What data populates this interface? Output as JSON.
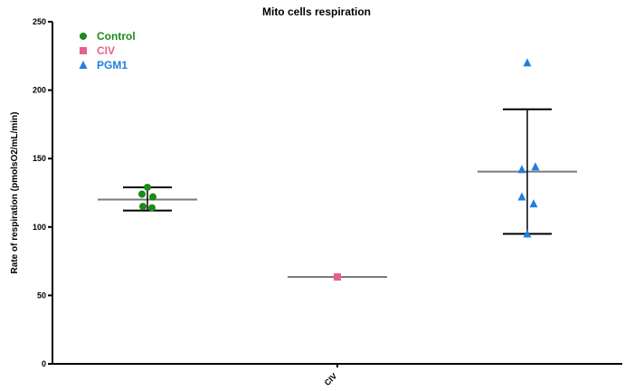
{
  "chart_data": {
    "type": "scatter",
    "title": "Mito cells respiration",
    "xlabel": "",
    "ylabel": "Rate of respiration (pmolsO2/mL/min)",
    "ylim": [
      0,
      250
    ],
    "yticks": [
      0,
      50,
      100,
      150,
      200,
      250
    ],
    "categories": [
      "CIV"
    ],
    "grid": false,
    "legend_position": "top-left",
    "series": [
      {
        "name": "Control",
        "color": "#1a8a1a",
        "marker": "circle",
        "group_position": 1,
        "points": [
          129,
          124,
          122,
          115,
          114
        ],
        "mean": 120,
        "error": [
          112,
          129
        ]
      },
      {
        "name": "CIV",
        "color": "#e8608a",
        "marker": "square",
        "group_position": 2,
        "points": [
          63.5
        ],
        "mean": 63.5,
        "error": [
          63.5,
          63.5
        ]
      },
      {
        "name": "PGM1",
        "color": "#1f7fe0",
        "marker": "triangle",
        "group_position": 3,
        "points": [
          220,
          144,
          142,
          122,
          117,
          95
        ],
        "mean": 140.5,
        "error": [
          95,
          186
        ]
      }
    ]
  }
}
